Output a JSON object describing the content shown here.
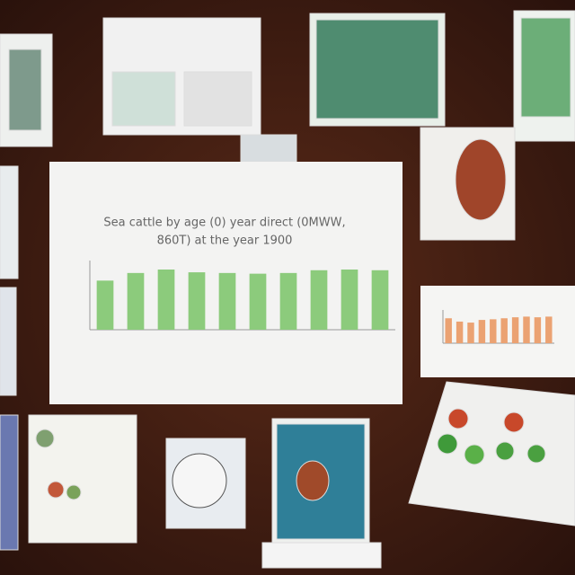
{
  "chart_data": [
    {
      "type": "bar",
      "title": [
        "Sea cattle by age (0) year direct (0MWW,",
        "860T) at the year 1900"
      ],
      "categories": [
        null,
        null,
        null,
        null,
        null,
        null,
        null,
        null,
        null,
        null
      ],
      "values": [
        71,
        82,
        87,
        83,
        82,
        81,
        82,
        86,
        87,
        86
      ],
      "color": "#8ccb7c",
      "ylim": [
        0,
        100
      ]
    },
    {
      "type": "bar",
      "categories": [
        null,
        null,
        null,
        null,
        null,
        null,
        null,
        null,
        null,
        null
      ],
      "values": [
        75,
        65,
        62,
        70,
        72,
        75,
        78,
        80,
        78,
        80
      ],
      "color": "#eba272",
      "ylim": [
        0,
        100
      ]
    }
  ]
}
